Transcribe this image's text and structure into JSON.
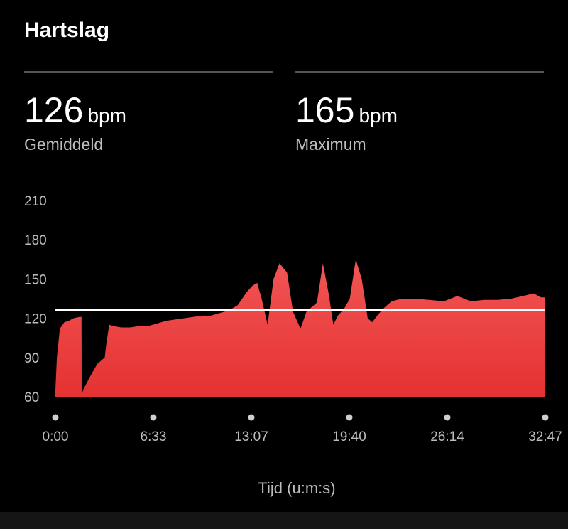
{
  "header": {
    "title": "Hartslag"
  },
  "stats": [
    {
      "value": "126",
      "unit": "bpm",
      "label": "Gemiddeld"
    },
    {
      "value": "165",
      "unit": "bpm",
      "label": "Maximum"
    }
  ],
  "colors": {
    "fill_top": "#f25555",
    "fill_bottom": "#e53232",
    "average_line": "#ffffff",
    "background": "#000000"
  },
  "chart_data": {
    "type": "area",
    "title": "Hartslag",
    "xlabel": "Tijd (u:m:s)",
    "ylabel": "",
    "ylim": [
      60,
      210
    ],
    "xlim": [
      0,
      32.78
    ],
    "x_tick_labels": [
      "0:00",
      "6:33",
      "13:07",
      "19:40",
      "26:14",
      "32:47"
    ],
    "y_tick_labels": [
      "210",
      "180",
      "150",
      "120",
      "90",
      "60"
    ],
    "average_line": 126,
    "grid": false,
    "legend": "none",
    "series": [
      {
        "x": [
          0,
          0.1,
          0.3,
          0.6,
          0.9,
          1.2,
          1.6,
          1.75,
          1.76,
          1.85,
          2.3,
          2.8,
          3.3,
          3.4,
          3.6,
          3.9,
          4.4,
          5.0,
          5.6,
          6.2,
          6.8,
          7.4,
          8.0,
          8.6,
          9.2,
          9.8,
          10.4,
          11.0,
          11.6,
          12.2,
          12.8,
          13.2,
          13.5,
          13.8,
          14.2,
          14.6,
          15.0,
          15.5,
          15.9,
          16.4,
          16.8,
          17.1,
          17.5,
          17.9,
          18.3,
          18.6,
          18.9,
          19.3,
          19.7,
          20.1,
          20.5,
          20.9,
          21.2,
          21.6,
          22.0,
          22.5,
          23.2,
          24.0,
          25.0,
          26.0,
          26.9,
          27.8,
          28.7,
          29.6,
          30.5,
          31.3,
          32.0,
          32.5,
          32.78
        ],
        "y": [
          65,
          90,
          112,
          117,
          118,
          120,
          121,
          121,
          60,
          65,
          75,
          85,
          90,
          100,
          115,
          114,
          113,
          113,
          114,
          114,
          116,
          118,
          119,
          120,
          121,
          122,
          122,
          124,
          126,
          130,
          140,
          145,
          147,
          135,
          115,
          150,
          162,
          155,
          125,
          112,
          125,
          128,
          132,
          162,
          138,
          115,
          122,
          127,
          135,
          165,
          150,
          120,
          117,
          123,
          128,
          133,
          135,
          135,
          134,
          133,
          137,
          133,
          134,
          134,
          135,
          137,
          139,
          136,
          136
        ]
      }
    ]
  },
  "bottom_bar": {}
}
